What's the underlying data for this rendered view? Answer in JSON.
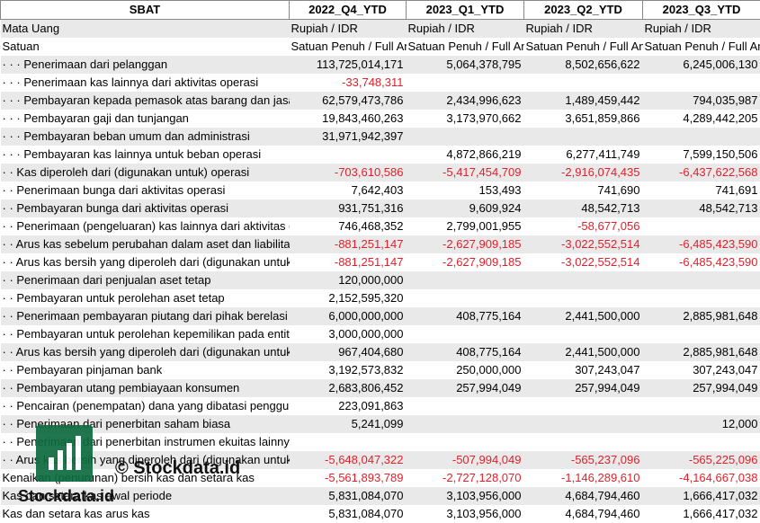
{
  "columns": [
    "SBAT",
    "2022_Q4_YTD",
    "2023_Q1_YTD",
    "2023_Q2_YTD",
    "2023_Q3_YTD"
  ],
  "rows": [
    {
      "indent": 0,
      "label": "Mata Uang",
      "v": [
        "Rupiah / IDR",
        "Rupiah / IDR",
        "Rupiah / IDR",
        "Rupiah / IDR"
      ],
      "text": true
    },
    {
      "indent": 0,
      "label": "Satuan",
      "v": [
        "Satuan Penuh / Full Amount",
        "Satuan Penuh / Full Amount",
        "Satuan Penuh / Full Amount",
        "Satuan Penuh / Full Amount"
      ],
      "text": true
    },
    {
      "indent": 3,
      "label": "Penerimaan dari pelanggan",
      "v": [
        "113,725,014,171",
        "5,064,378,795",
        "8,502,656,622",
        "6,245,006,130"
      ]
    },
    {
      "indent": 3,
      "label": "Penerimaan kas lainnya dari aktivitas operasi",
      "v": [
        "-33,748,311",
        "",
        "",
        ""
      ]
    },
    {
      "indent": 3,
      "label": "Pembayaran kepada pemasok atas barang dan jasa",
      "v": [
        "62,579,473,786",
        "2,434,996,623",
        "1,489,459,442",
        "794,035,987"
      ]
    },
    {
      "indent": 3,
      "label": "Pembayaran gaji dan tunjangan",
      "v": [
        "19,843,460,263",
        "3,173,970,662",
        "3,651,859,866",
        "4,289,442,205"
      ]
    },
    {
      "indent": 3,
      "label": "Pembayaran beban umum dan administrasi",
      "v": [
        "31,971,942,397",
        "",
        "",
        ""
      ]
    },
    {
      "indent": 3,
      "label": "Pembayaran kas lainnya untuk beban operasi",
      "v": [
        "",
        "4,872,866,219",
        "6,277,411,749",
        "7,599,150,506"
      ]
    },
    {
      "indent": 2,
      "label": "Kas diperoleh dari (digunakan untuk) operasi",
      "v": [
        "-703,610,586",
        "-5,417,454,709",
        "-2,916,074,435",
        "-6,437,622,568"
      ]
    },
    {
      "indent": 2,
      "label": "Penerimaan bunga dari aktivitas operasi",
      "v": [
        "7,642,403",
        "153,493",
        "741,690",
        "741,691"
      ]
    },
    {
      "indent": 2,
      "label": "Pembayaran bunga dari aktivitas operasi",
      "v": [
        "931,751,316",
        "9,609,924",
        "48,542,713",
        "48,542,713"
      ]
    },
    {
      "indent": 2,
      "label": "Penerimaan (pengeluaran) kas lainnya dari aktivitas operasi",
      "v": [
        "746,468,352",
        "2,799,001,955",
        "-58,677,056",
        ""
      ]
    },
    {
      "indent": 2,
      "label": "Arus kas sebelum perubahan dalam aset dan liabilitas",
      "v": [
        "-881,251,147",
        "-2,627,909,185",
        "-3,022,552,514",
        "-6,485,423,590"
      ]
    },
    {
      "indent": 2,
      "label": "Arus kas bersih yang diperoleh dari (digunakan untuk)",
      "v": [
        "-881,251,147",
        "-2,627,909,185",
        "-3,022,552,514",
        "-6,485,423,590"
      ]
    },
    {
      "indent": 2,
      "label": "Penerimaan dari penjualan aset tetap",
      "v": [
        "120,000,000",
        "",
        "",
        ""
      ]
    },
    {
      "indent": 2,
      "label": "Pembayaran untuk perolehan aset tetap",
      "v": [
        "2,152,595,320",
        "",
        "",
        ""
      ]
    },
    {
      "indent": 2,
      "label": "Penerimaan pembayaran piutang dari pihak berelasi",
      "v": [
        "6,000,000,000",
        "408,775,164",
        "2,441,500,000",
        "2,885,981,648"
      ]
    },
    {
      "indent": 2,
      "label": "Pembayaran untuk perolehan kepemilikan pada entitas",
      "v": [
        "3,000,000,000",
        "",
        "",
        ""
      ]
    },
    {
      "indent": 2,
      "label": "Arus kas bersih yang diperoleh dari (digunakan untuk)",
      "v": [
        "967,404,680",
        "408,775,164",
        "2,441,500,000",
        "2,885,981,648"
      ]
    },
    {
      "indent": 2,
      "label": "Pembayaran pinjaman bank",
      "v": [
        "3,192,573,832",
        "250,000,000",
        "307,243,047",
        "307,243,047"
      ]
    },
    {
      "indent": 2,
      "label": "Pembayaran utang pembiayaan konsumen",
      "v": [
        "2,683,806,452",
        "257,994,049",
        "257,994,049",
        "257,994,049"
      ]
    },
    {
      "indent": 2,
      "label": "Pencairan (penempatan) dana yang dibatasi penggunaannya",
      "v": [
        "223,091,863",
        "",
        "",
        ""
      ]
    },
    {
      "indent": 2,
      "label": "Penerimaan dari penerbitan saham biasa",
      "v": [
        "5,241,099",
        "",
        "",
        "12,000"
      ]
    },
    {
      "indent": 2,
      "label": "Penerimaan dari penerbitan instrumen ekuitas lainnya",
      "v": [
        "",
        "",
        "",
        ""
      ]
    },
    {
      "indent": 2,
      "label": "Arus kas bersih yang diperoleh dari (digunakan untuk)",
      "v": [
        "-5,648,047,322",
        "-507,994,049",
        "-565,237,096",
        "-565,225,096"
      ]
    },
    {
      "indent": 1,
      "label": "Kenaikan (penurunan) bersih kas dan setara kas",
      "v": [
        "-5,561,893,789",
        "-2,727,128,070",
        "-1,146,289,610",
        "-4,164,667,038"
      ]
    },
    {
      "indent": 1,
      "label": "Kas dan setara kas awal periode",
      "v": [
        "5,831,084,070",
        "3,103,956,000",
        "4,684,794,460",
        "1,666,417,032"
      ]
    },
    {
      "indent": 0,
      "label": "Kas dan setara kas arus kas",
      "v": [
        "5,831,084,070",
        "3,103,956,000",
        "4,684,794,460",
        "1,666,417,032"
      ]
    }
  ],
  "watermark": {
    "text1": "© Stockdata.id",
    "text2": "Stockdata.id"
  },
  "colors": {
    "negative": "#e3202a",
    "stripe": "#e9e9e9",
    "logo": "#0e6b3f"
  }
}
